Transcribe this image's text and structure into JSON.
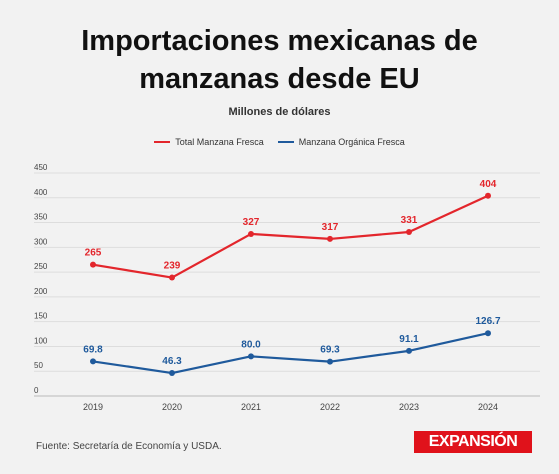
{
  "header": {
    "title_line1": "Importaciones mexicanas de",
    "title_line2": "manzanas desde EU",
    "subtitle": "Millones de dólares"
  },
  "footer": {
    "source": "Fuente: Secretaría de Economía y USDA.",
    "logo_text": "EXPANSIÓN"
  },
  "colors": {
    "fresh": "#e3262c",
    "organic": "#1f5a9c",
    "logo": "#e0121b"
  },
  "chart_data": {
    "type": "line",
    "x": [
      "2019",
      "2020",
      "2021",
      "2022",
      "2023",
      "2024"
    ],
    "series": [
      {
        "name": "Total Manzana Fresca",
        "values": [
          265,
          239,
          327,
          317,
          331,
          404
        ],
        "labels": [
          "265",
          "239",
          "327",
          "317",
          "331",
          "404"
        ]
      },
      {
        "name": "Manzana Orgánica Fresca",
        "values": [
          69.8,
          46.3,
          80.0,
          69.3,
          91.1,
          126.7
        ],
        "labels": [
          "69.8",
          "46.3",
          "80.0",
          "69.3",
          "91.1",
          "126.7"
        ]
      }
    ],
    "yticks": [
      0,
      50,
      100,
      150,
      200,
      250,
      300,
      350,
      400,
      450
    ],
    "ylim": [
      0,
      450
    ],
    "grid": true,
    "legend": "top-center"
  }
}
